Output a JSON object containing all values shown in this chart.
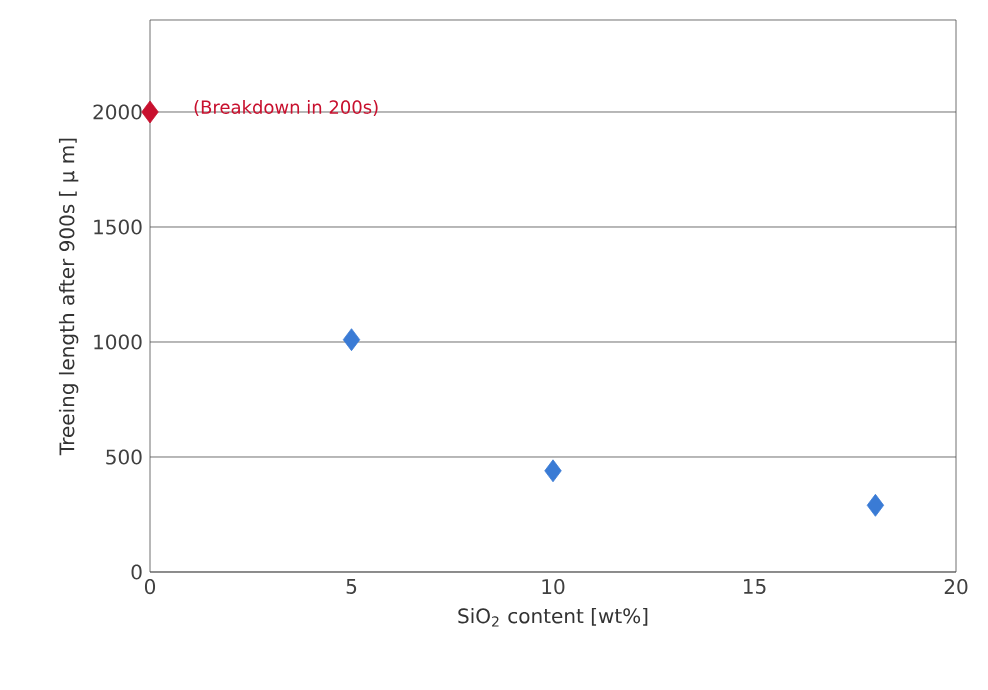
{
  "chart_data": {
    "type": "scatter",
    "xlabel": "SiO$_{2}$ content  [wt%]",
    "ylabel": "Treeing length after 900s [ μ m]",
    "x": [
      0,
      5,
      10,
      18
    ],
    "values": [
      2000,
      1010,
      440,
      290
    ],
    "colors": [
      "#c8102e",
      "#3a7bd5",
      "#3a7bd5",
      "#3a7bd5"
    ],
    "marker": "diamond",
    "grid": "y",
    "xlim": [
      0,
      20
    ],
    "xticks": [
      0,
      5,
      10,
      15,
      20
    ],
    "ylim": [
      0,
      2400
    ],
    "yticks": [
      0,
      500,
      1000,
      1500,
      2000
    ],
    "annotations": [
      {
        "text": "(Breakdown in 200s)",
        "x": 0,
        "y": 2000
      }
    ]
  }
}
